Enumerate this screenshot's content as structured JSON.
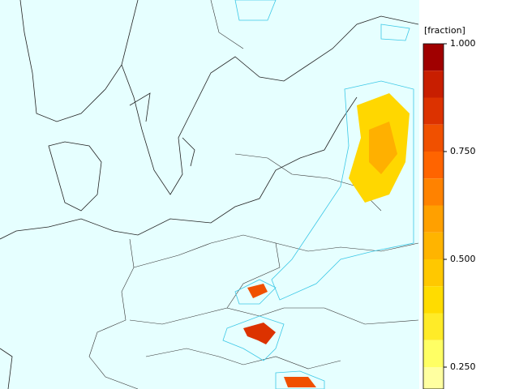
{
  "colorbar": {
    "unit_label": "[fraction]",
    "ticks": [
      {
        "value": 1,
        "label": "1.000"
      },
      {
        "value": 0.75,
        "label": "0.750"
      },
      {
        "value": 0.5,
        "label": "0.500"
      },
      {
        "value": 0.25,
        "label": "0.250"
      }
    ],
    "levels": [
      1,
      0.9375,
      0.875,
      0.8125,
      0.75,
      0.6875,
      0.625,
      0.5625,
      0.5,
      0.4375,
      0.375,
      0.3125,
      0.25,
      0.1875
    ],
    "colors": [
      "#a00000",
      "#c81e00",
      "#dc3200",
      "#f05000",
      "#ff6400",
      "#ff8200",
      "#ffa000",
      "#ffb400",
      "#ffc800",
      "#ffdc00",
      "#ffeb28",
      "#ffff64",
      "#ffffa0"
    ]
  }
}
